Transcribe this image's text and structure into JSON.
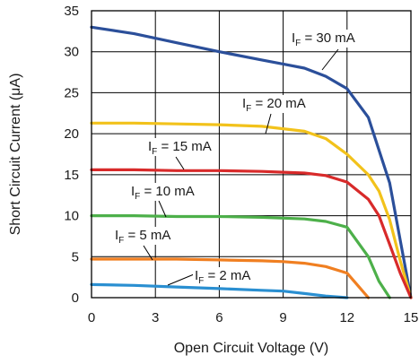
{
  "chart_data": {
    "type": "line",
    "xlabel": "Open Circuit Voltage (V)",
    "ylabel": "Short Circuit Current (μA)",
    "xlim": [
      0,
      15
    ],
    "ylim": [
      0,
      35
    ],
    "xticks": [
      "0",
      "3",
      "6",
      "9",
      "12",
      "15"
    ],
    "yticks": [
      "0",
      "5",
      "10",
      "15",
      "20",
      "25",
      "30",
      "35"
    ],
    "grid": true,
    "legend": "none",
    "series": [
      {
        "name": "IF = 30 mA",
        "label_main": "I",
        "label_sub": "F",
        "label_rest": " = 30 mA",
        "color": "#2b4f9a",
        "x": [
          0,
          2,
          4,
          6,
          8,
          9,
          10,
          11,
          12,
          13,
          14,
          14.5,
          15
        ],
        "y": [
          33.0,
          32.2,
          31.1,
          30.0,
          29.0,
          28.5,
          28.0,
          27.0,
          25.5,
          22.0,
          14.0,
          7.0,
          0
        ]
      },
      {
        "name": "IF = 20 mA",
        "label_main": "I",
        "label_sub": "F",
        "label_rest": " = 20 mA",
        "color": "#f2c21b",
        "x": [
          0,
          2,
          4,
          6,
          8,
          10,
          11,
          12,
          13,
          13.5,
          14,
          14.5,
          15
        ],
        "y": [
          21.3,
          21.3,
          21.2,
          21.1,
          20.9,
          20.3,
          19.4,
          17.5,
          15.0,
          13.0,
          9.5,
          4.5,
          0
        ]
      },
      {
        "name": "IF = 15 mA",
        "label_main": "I",
        "label_sub": "F",
        "label_rest": " = 15 mA",
        "color": "#d82a2a",
        "x": [
          0,
          2,
          4,
          6,
          8,
          9,
          10,
          11,
          12,
          13,
          13.5,
          14,
          14.5,
          15
        ],
        "y": [
          15.6,
          15.6,
          15.5,
          15.5,
          15.4,
          15.3,
          15.2,
          14.9,
          14.1,
          12.0,
          10.0,
          6.5,
          3.0,
          0
        ]
      },
      {
        "name": "IF = 10 mA",
        "label_main": "I",
        "label_sub": "F",
        "label_rest": " = 10 mA",
        "color": "#4db04a",
        "x": [
          0,
          2,
          4,
          6,
          8,
          10,
          11,
          12,
          13,
          13.5,
          14
        ],
        "y": [
          10.0,
          10.0,
          9.9,
          9.9,
          9.8,
          9.6,
          9.3,
          8.6,
          5.0,
          2.0,
          0
        ]
      },
      {
        "name": "IF = 5 mA",
        "label_main": "I",
        "label_sub": "F",
        "label_rest": " = 5 mA",
        "color": "#f07f21",
        "x": [
          0,
          2,
          4,
          6,
          8,
          9,
          10,
          11,
          12,
          12.5,
          13
        ],
        "y": [
          4.7,
          4.7,
          4.7,
          4.6,
          4.5,
          4.4,
          4.2,
          3.8,
          3.0,
          1.5,
          0
        ]
      },
      {
        "name": "IF = 2 mA",
        "label_main": "I",
        "label_sub": "F",
        "label_rest": " = 2 mA",
        "color": "#2a8fd1",
        "x": [
          0,
          2,
          4,
          6,
          8,
          9,
          10,
          11,
          12
        ],
        "y": [
          1.6,
          1.5,
          1.3,
          1.1,
          0.9,
          0.8,
          0.5,
          0.2,
          0
        ]
      }
    ]
  }
}
